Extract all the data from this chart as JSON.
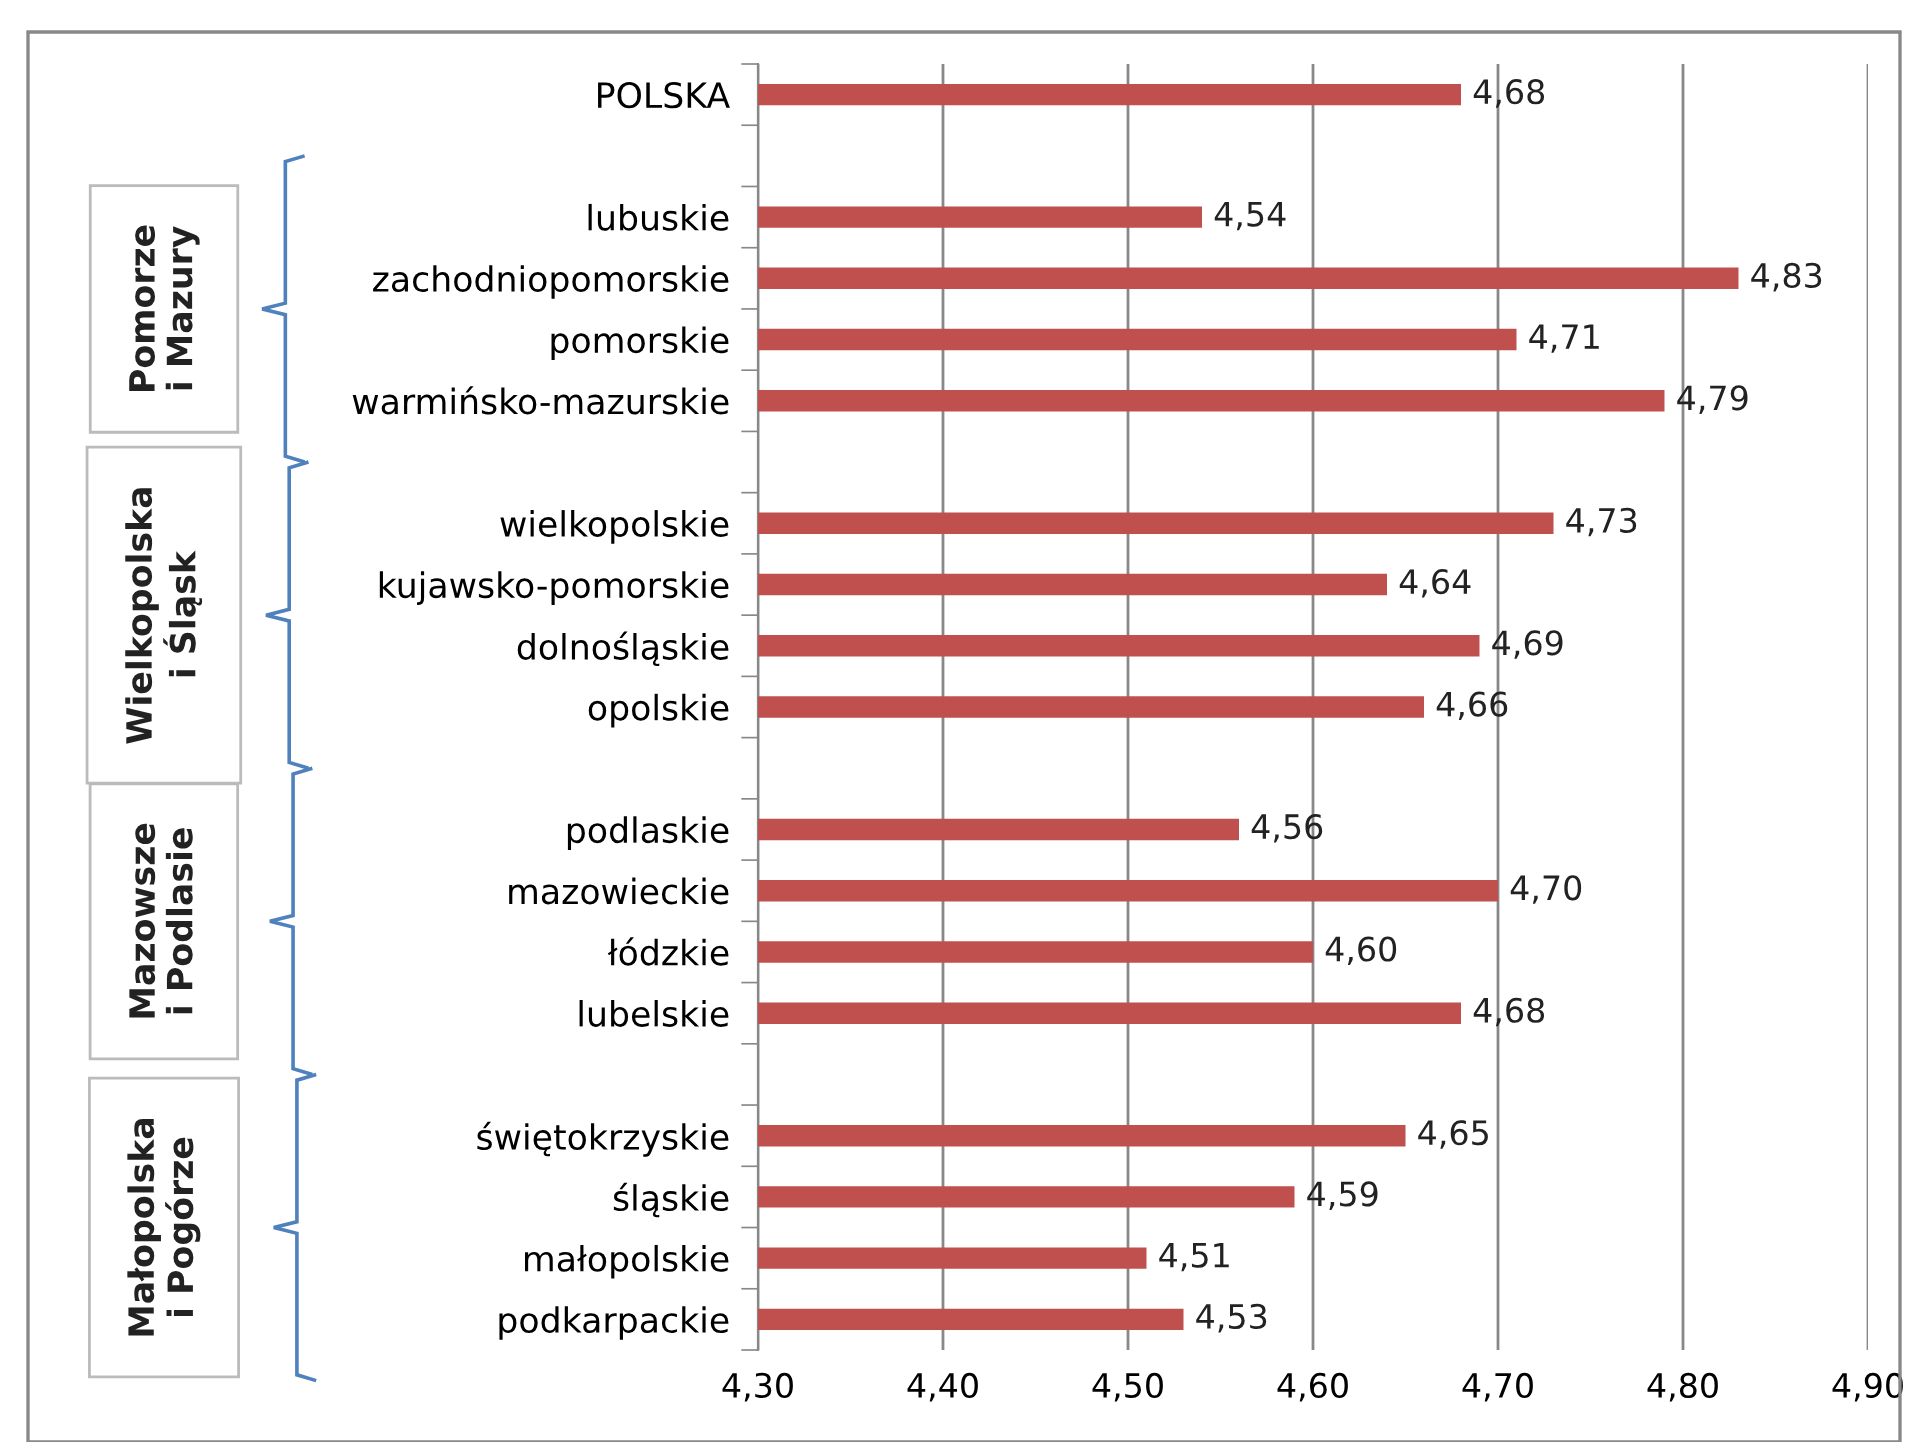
{
  "chart_data": {
    "type": "bar",
    "orientation": "horizontal",
    "categories": [
      "POLSKA",
      null,
      "lubuskie",
      "zachodniopomorskie",
      "pomorskie",
      "warmińsko-mazurskie",
      null,
      "wielkopolskie",
      "kujawsko-pomorskie",
      "dolnośląskie",
      "opolskie",
      null,
      "podlaskie",
      "mazowieckie",
      "łódzkie",
      "lubelskie",
      null,
      "świętokrzyskie",
      "śląskie",
      "małopolskie",
      "podkarpackie"
    ],
    "values": [
      4.68,
      null,
      4.54,
      4.83,
      4.71,
      4.79,
      null,
      4.73,
      4.64,
      4.69,
      4.66,
      null,
      4.56,
      4.7,
      4.6,
      4.68,
      null,
      4.65,
      4.59,
      4.51,
      4.53
    ],
    "value_labels": [
      "4,68",
      null,
      "4,54",
      "4,83",
      "4,71",
      "4,79",
      null,
      "4,73",
      "4,64",
      "4,69",
      "4,66",
      null,
      "4,56",
      "4,70",
      "4,60",
      "4,68",
      null,
      "4,65",
      "4,59",
      "4,51",
      "4,53"
    ],
    "color": "#c0504d",
    "xlim": [
      4.3,
      4.9
    ],
    "xticks": [
      {
        "value": 4.3,
        "label": "4,30"
      },
      {
        "value": 4.4,
        "label": "4,40"
      },
      {
        "value": 4.5,
        "label": "4,50"
      },
      {
        "value": 4.6,
        "label": "4,60"
      },
      {
        "value": 4.7,
        "label": "4,70"
      },
      {
        "value": 4.8,
        "label": "4,80"
      },
      {
        "value": 4.9,
        "label": "4,90"
      }
    ],
    "grid": "x",
    "annotations": [
      "Pomorze\ni Mazury",
      "Wielkopolska\ni Śląsk",
      "Mazowsze\ni Podlasie",
      "Małopolska\ni Pogórze"
    ]
  }
}
